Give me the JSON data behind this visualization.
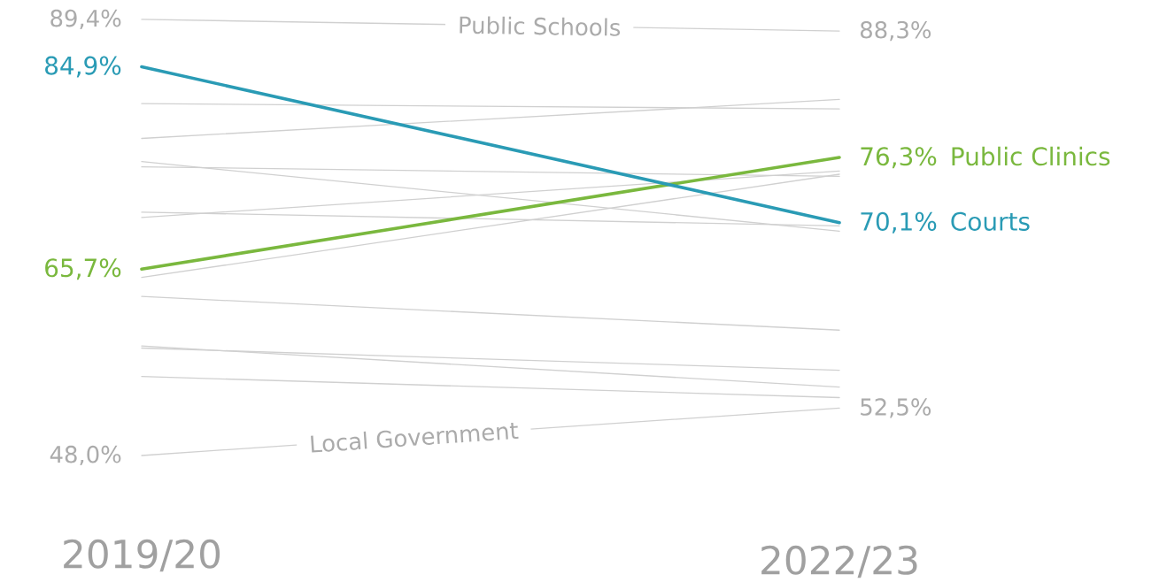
{
  "chart_data": {
    "type": "line",
    "categories": [
      "2019/20",
      "2022/23"
    ],
    "series": [
      {
        "name": "Public Schools",
        "color": "#d0d0d0",
        "values": [
          89.4,
          88.3
        ],
        "value_labels": [
          "89,4%",
          "88,3%"
        ]
      },
      {
        "color": "#d0d0d0",
        "values": [
          81.4,
          80.9
        ]
      },
      {
        "color": "#d0d0d0",
        "values": [
          78.1,
          81.8
        ]
      },
      {
        "color": "#d0d0d0",
        "values": [
          75.9,
          69.3
        ]
      },
      {
        "color": "#d0d0d0",
        "values": [
          75.4,
          74.5
        ]
      },
      {
        "color": "#d0d0d0",
        "values": [
          71.1,
          69.8
        ]
      },
      {
        "color": "#d0d0d0",
        "values": [
          70.6,
          75.0
        ]
      },
      {
        "color": "#d0d0d0",
        "values": [
          64.9,
          74.7
        ]
      },
      {
        "color": "#d0d0d0",
        "values": [
          63.1,
          59.9
        ]
      },
      {
        "color": "#d0d0d0",
        "values": [
          58.4,
          54.5
        ]
      },
      {
        "color": "#d0d0d0",
        "values": [
          58.2,
          56.1
        ]
      },
      {
        "color": "#d0d0d0",
        "values": [
          55.5,
          53.5
        ]
      },
      {
        "name": "Local Government",
        "color": "#d0d0d0",
        "values": [
          48.0,
          52.5
        ],
        "value_labels": [
          "48,0%",
          "52,5%"
        ]
      },
      {
        "name": "Public Clinics",
        "color": "#7ab83e",
        "values": [
          65.7,
          76.3
        ],
        "value_labels": [
          "65,7%",
          "76,3%"
        ]
      },
      {
        "name": "Courts",
        "color": "#2a9bb5",
        "values": [
          84.9,
          70.1
        ],
        "value_labels": [
          "84,9%",
          "70,1%"
        ]
      }
    ]
  }
}
